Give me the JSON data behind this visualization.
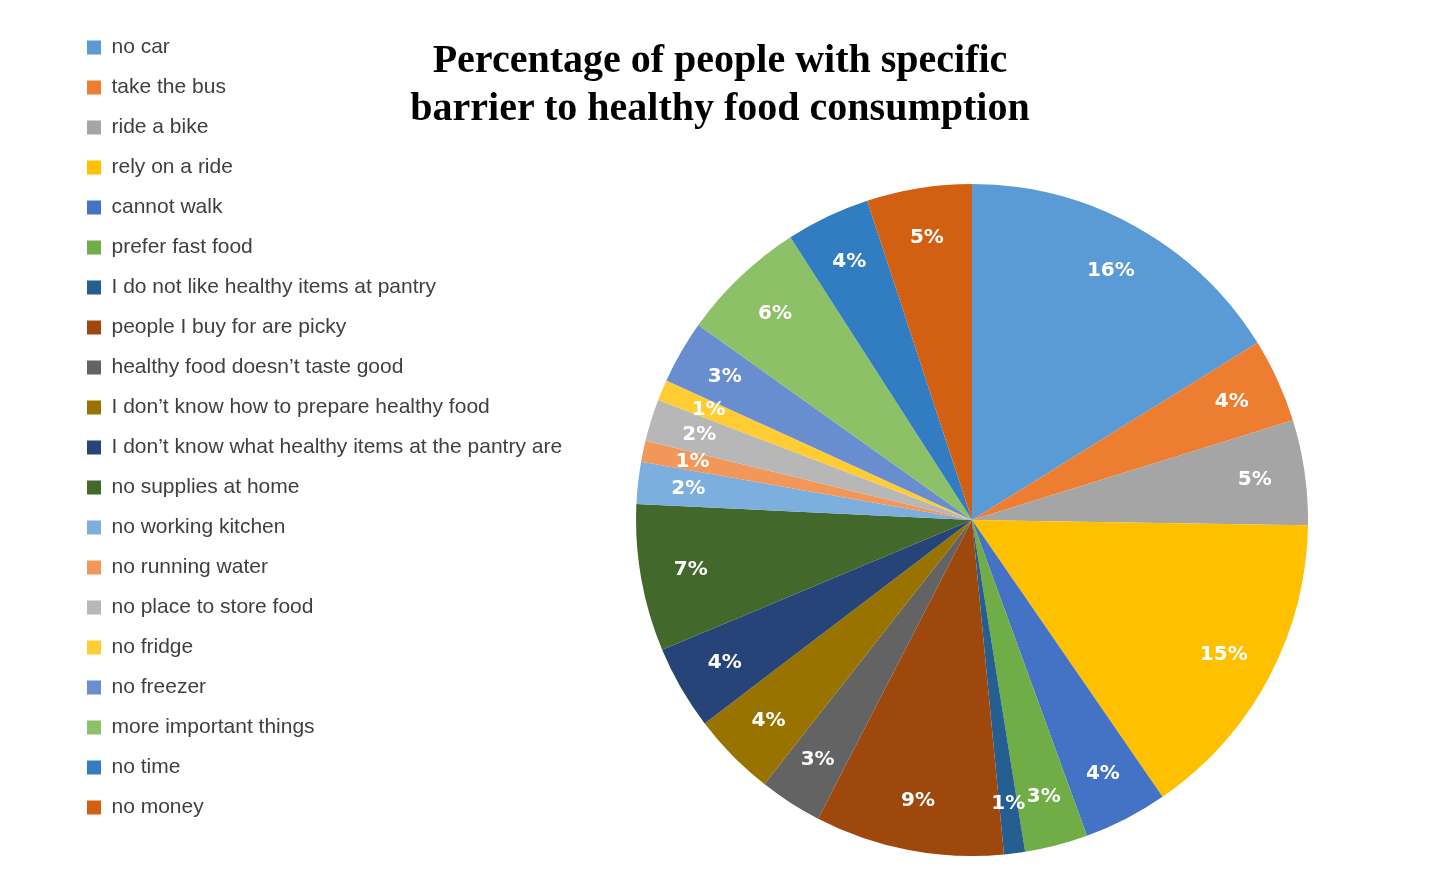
{
  "chart_data": {
    "type": "pie",
    "title": "Percentage of people with specific barrier to healthy food consumption",
    "categories": [
      "no car",
      "take the bus",
      "ride a bike",
      "rely on a ride",
      "cannot walk",
      "prefer fast food",
      "I do not like healthy items at pantry",
      "people I buy for are picky",
      "healthy food doesn’t taste good",
      "I don’t know how to prepare healthy food",
      "I don’t know what healthy items at the pantry are",
      "no supplies at home",
      "no working kitchen",
      "no running water",
      "no place to store food",
      "no fridge",
      "no freezer",
      "more important things",
      "no time",
      "no money"
    ],
    "values": [
      16,
      4,
      5,
      15,
      4,
      3,
      1,
      9,
      3,
      4,
      4,
      7,
      2,
      1,
      2,
      1,
      3,
      6,
      4,
      5
    ],
    "value_labels": [
      "16%",
      "4%",
      "5%",
      "15%",
      "4%",
      "3%",
      "1%",
      "9%",
      "3%",
      "4%",
      "4%",
      "7%",
      "2%",
      "1%",
      "2%",
      "1%",
      "3%",
      "6%",
      "4%",
      "5%"
    ],
    "colors": [
      "#5b9bd5",
      "#ed7d31",
      "#a5a5a5",
      "#ffc000",
      "#4472c4",
      "#70ad47",
      "#255e91",
      "#9e480e",
      "#636363",
      "#997300",
      "#264478",
      "#43682b",
      "#7cafdd",
      "#f1975a",
      "#b7b7b7",
      "#ffcd33",
      "#698ed0",
      "#8cc168",
      "#327dc2",
      "#d26012"
    ],
    "legend": "left"
  }
}
